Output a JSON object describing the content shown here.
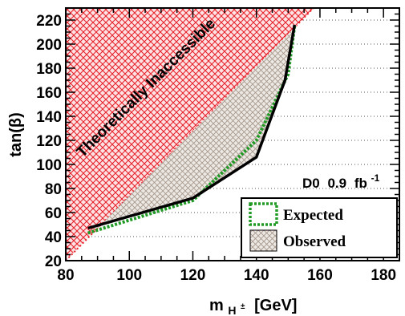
{
  "chart_data": {
    "type": "area",
    "xlabel": "m",
    "xlabel_sub": "H",
    "xlabel_sup": "±",
    "xlabel_unit": "[GeV]",
    "ylabel": "tan(β)",
    "xlim": [
      80,
      185
    ],
    "ylim": [
      20,
      230
    ],
    "xticks": [
      80,
      100,
      120,
      140,
      160,
      180
    ],
    "yticks": [
      20,
      40,
      60,
      80,
      100,
      120,
      140,
      160,
      180,
      200,
      220
    ],
    "grid": "horizontal dotted",
    "regions": [
      {
        "label": "Theoretically Inaccessible",
        "style": "red cross-hatch",
        "boundary": [
          [
            80,
            20
          ],
          [
            80,
            230
          ],
          [
            158,
            230
          ]
        ]
      }
    ],
    "series": [
      {
        "name": "Expected",
        "style": "green dotted",
        "points": [
          [
            87,
            43
          ],
          [
            120,
            70
          ],
          [
            140,
            120
          ],
          [
            150,
            175
          ],
          [
            152,
            215
          ]
        ]
      },
      {
        "name": "Observed",
        "style": "black solid, grey hatched excluded area",
        "points": [
          [
            87,
            47
          ],
          [
            120,
            72
          ],
          [
            140,
            106
          ],
          [
            149,
            170
          ],
          [
            152,
            216
          ]
        ]
      }
    ],
    "annotation": {
      "experiment": "D0",
      "lumi_value": "0.9",
      "lumi_unit": "fb",
      "lumi_sup": "-1"
    },
    "legend": {
      "position": "bottom-right",
      "entries": [
        "Expected",
        "Observed"
      ]
    },
    "colors": {
      "theoretical_hatch": "#e8212b",
      "observed_hatch": "#a8978b",
      "observed_fill": "#e6e1dc",
      "expected_line": "#1f9a24",
      "observed_line": "#000000"
    }
  }
}
